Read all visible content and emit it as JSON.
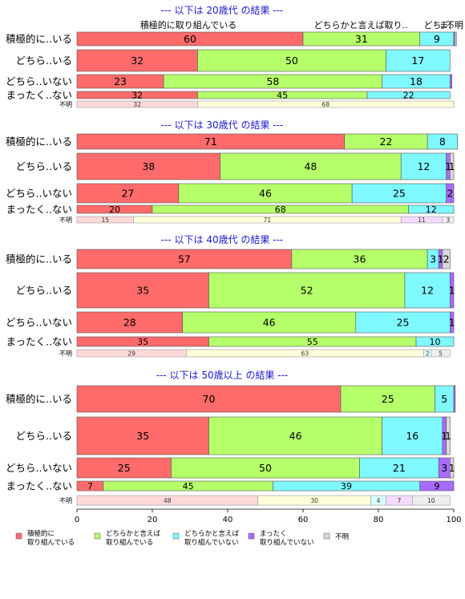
{
  "chart_data": {
    "type": "bar",
    "orientation": "horizontal",
    "stacked": true,
    "xlim": [
      0,
      100
    ],
    "xticks": [
      0,
      20,
      40,
      60,
      80,
      100
    ],
    "colors": {
      "big": [
        "#ff6b6b",
        "#b5ff6b",
        "#7ff8ff",
        "#a86bff",
        "#d9d9d9"
      ],
      "small": [
        "#ffd9d9",
        "#ffffd9",
        "#d9ffff",
        "#f5d9ff",
        "#eeeeee"
      ]
    },
    "legend": [
      "積極的に\n取り組んでいる",
      "どちらかと言えば\n取り組んでいる",
      "どちらかと言えば\n取り組んでいない",
      "まったく\n取り組んでいない",
      "不明"
    ],
    "top_labels": [
      "積極的に取り組んでいる",
      "どちらかと言えば取り..",
      "どち..",
      "ま..",
      "不明"
    ],
    "panels": [
      {
        "title": "--- 以下は 20歳代 の結果 ---",
        "rows": [
          {
            "label": "積極的に..いる",
            "values": [
              60,
              31,
              9,
              0.3,
              0.4
            ],
            "labels": [
              "60",
              "31",
              "9",
              "",
              ""
            ]
          },
          {
            "label": "どちら..いる",
            "values": [
              32,
              50,
              17,
              0,
              0
            ],
            "labels": [
              "32",
              "50",
              "17",
              "",
              ""
            ]
          },
          {
            "label": "どちら..いない",
            "values": [
              23,
              58,
              18,
              0.5,
              0
            ],
            "labels": [
              "23",
              "58",
              "18",
              "",
              ""
            ]
          },
          {
            "label": "まったく..ない",
            "values": [
              32,
              45,
              22,
              0,
              0
            ],
            "labels": [
              "32",
              "45",
              "22",
              "",
              ""
            ]
          },
          {
            "label": "不明",
            "values": [
              32,
              68,
              0,
              0,
              0
            ],
            "labels": [
              "32",
              "68",
              "",
              "",
              ""
            ]
          }
        ]
      },
      {
        "title": "--- 以下は 30歳代 の結果 ---",
        "rows": [
          {
            "label": "積極的に..いる",
            "values": [
              71,
              22,
              8,
              0,
              0
            ],
            "labels": [
              "71",
              "22",
              "8",
              "",
              ""
            ]
          },
          {
            "label": "どちら..いる",
            "values": [
              38,
              48,
              12,
              1,
              1
            ],
            "labels": [
              "38",
              "48",
              "12",
              "1",
              "1"
            ]
          },
          {
            "label": "どちら..いない",
            "values": [
              27,
              46,
              25,
              2,
              0
            ],
            "labels": [
              "27",
              "46",
              "25",
              "2",
              ""
            ]
          },
          {
            "label": "まったく..ない",
            "values": [
              20,
              68,
              12,
              0,
              0
            ],
            "labels": [
              "20",
              "68",
              "12",
              "",
              ""
            ]
          },
          {
            "label": "不明",
            "values": [
              15,
              71,
              0,
              11,
              3
            ],
            "labels": [
              "15",
              "71",
              "",
              "11",
              "3"
            ]
          }
        ]
      },
      {
        "title": "--- 以下は 40歳代 の結果 ---",
        "rows": [
          {
            "label": "積極的に..いる",
            "values": [
              57,
              36,
              3,
              1,
              2
            ],
            "labels": [
              "57",
              "36",
              "3",
              "1",
              "2"
            ]
          },
          {
            "label": "どちら..いる",
            "values": [
              35,
              52,
              12,
              1,
              0
            ],
            "labels": [
              "35",
              "52",
              "12",
              "1",
              ""
            ]
          },
          {
            "label": "どちら..いない",
            "values": [
              28,
              46,
              25,
              1,
              0
            ],
            "labels": [
              "28",
              "46",
              "25",
              "1",
              ""
            ]
          },
          {
            "label": "まったく..ない",
            "values": [
              35,
              55,
              10,
              0,
              0
            ],
            "labels": [
              "35",
              "55",
              "10",
              "",
              ""
            ]
          },
          {
            "label": "不明",
            "values": [
              29,
              63,
              2,
              0,
              5
            ],
            "labels": [
              "29",
              "63",
              "2",
              "",
              "5"
            ]
          }
        ]
      },
      {
        "title": "--- 以下は 50歳以上 の結果 ---",
        "rows": [
          {
            "label": "積極的に..いる",
            "values": [
              70,
              25,
              5,
              0.4,
              0
            ],
            "labels": [
              "70",
              "25",
              "5",
              "",
              ""
            ]
          },
          {
            "label": "どちら..いる",
            "values": [
              35,
              46,
              16,
              1,
              1
            ],
            "labels": [
              "35",
              "46",
              "16",
              "1",
              "1"
            ]
          },
          {
            "label": "どちら..いない",
            "values": [
              25,
              50,
              21,
              3,
              1
            ],
            "labels": [
              "25",
              "50",
              "21",
              "3",
              "1"
            ]
          },
          {
            "label": "まったく..ない",
            "values": [
              7,
              45,
              39,
              9,
              0
            ],
            "labels": [
              "7",
              "45",
              "39",
              "9",
              ""
            ]
          },
          {
            "label": "不明",
            "values": [
              48,
              30,
              4,
              7,
              10
            ],
            "labels": [
              "48",
              "30",
              "4",
              "7",
              "10"
            ]
          }
        ]
      }
    ]
  }
}
